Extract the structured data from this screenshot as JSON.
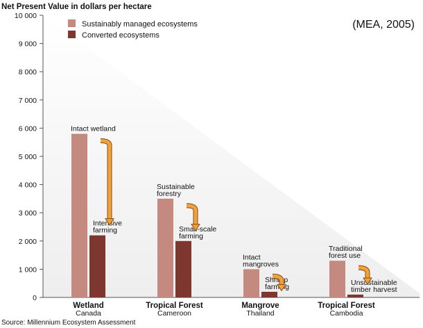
{
  "chart_data": {
    "type": "bar",
    "title": "Net Present Value in dollars per hectare",
    "citation": "(MEA, 2005)",
    "source": "Source: Millennium Ecosystem Assessment",
    "ylim": [
      0,
      10000
    ],
    "yticks": [
      {
        "value": 0,
        "label": "0"
      },
      {
        "value": 1000,
        "label": "1 000"
      },
      {
        "value": 2000,
        "label": "2 000"
      },
      {
        "value": 3000,
        "label": "3 000"
      },
      {
        "value": 4000,
        "label": "4 000"
      },
      {
        "value": 5000,
        "label": "5 000"
      },
      {
        "value": 6000,
        "label": "6 000"
      },
      {
        "value": 7000,
        "label": "7 000"
      },
      {
        "value": 8000,
        "label": "8 000"
      },
      {
        "value": 9000,
        "label": "9 000"
      },
      {
        "value": 10000,
        "label": "10 000"
      }
    ],
    "grid": false,
    "legend_position": "top-left",
    "categories": [
      {
        "name": "Wetland",
        "place": "Canada"
      },
      {
        "name": "Tropical Forest",
        "place": "Cameroon"
      },
      {
        "name": "Mangrove",
        "place": "Thailand"
      },
      {
        "name": "Tropical Forest",
        "place": "Cambodia"
      }
    ],
    "series": [
      {
        "name": "Sustainably managed ecosystems",
        "color": "#c48a80",
        "values": [
          5800,
          3500,
          1000,
          1300
        ],
        "labels": [
          [
            "Intact wetland"
          ],
          [
            "Sustainable",
            "forestry"
          ],
          [
            "Intact",
            "mangroves"
          ],
          [
            "Traditional",
            "forest use"
          ]
        ]
      },
      {
        "name": "Converted ecosystems",
        "color": "#7e372e",
        "values": [
          2200,
          2000,
          200,
          100
        ],
        "labels": [
          [
            "Intensive",
            "farming"
          ],
          [
            "Small-scale",
            "farming"
          ],
          [
            "Shrimp",
            "farming"
          ],
          [
            "Unsustainable",
            "timber harvest"
          ]
        ]
      }
    ],
    "arrow_color": "#f0a23e"
  }
}
